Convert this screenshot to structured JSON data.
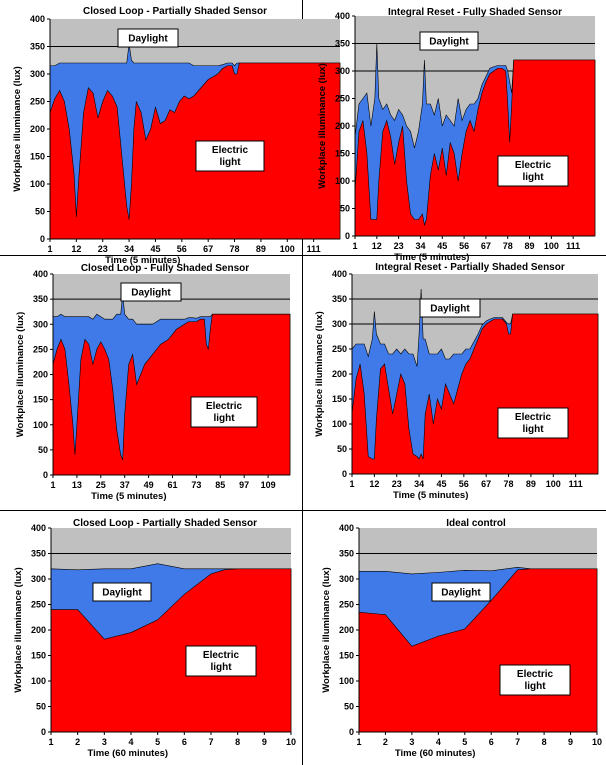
{
  "colors": {
    "daylight": "#3f7ae8",
    "electric": "#ff0000",
    "background": "#c0c0c0",
    "label_box": "#ffffff",
    "frame": "#000000"
  },
  "chart_data": [
    {
      "type": "area",
      "title": "Closed Loop - Partially Shaded Sensor",
      "ylabel": "Workplace illuminance (lux)",
      "xlabel": "Time (5 minutes)",
      "ylim": [
        0,
        400
      ],
      "yticks": [
        "0",
        "50",
        "100",
        "150",
        "200",
        "250",
        "300",
        "350",
        "400"
      ],
      "xticks": [
        "1",
        "12",
        "23",
        "34",
        "45",
        "56",
        "67",
        "78",
        "89",
        "100",
        "111"
      ],
      "xlim": [
        1,
        122
      ],
      "gridlines": [
        300,
        350
      ],
      "labels": {
        "daylight": "Daylight",
        "electric": [
          "Electric",
          "light"
        ]
      },
      "x": [
        1,
        3,
        5,
        7,
        9,
        11,
        12,
        13,
        15,
        17,
        19,
        21,
        23,
        25,
        27,
        29,
        31,
        33,
        34,
        35,
        36,
        37,
        39,
        41,
        43,
        45,
        47,
        49,
        51,
        53,
        55,
        57,
        59,
        61,
        63,
        65,
        67,
        69,
        71,
        73,
        75,
        77,
        78,
        79,
        80,
        81,
        122
      ],
      "series": [
        {
          "name": "Electric light",
          "values": [
            230,
            255,
            270,
            250,
            200,
            120,
            40,
            110,
            230,
            275,
            265,
            220,
            250,
            270,
            260,
            240,
            150,
            60,
            35,
            100,
            200,
            250,
            230,
            180,
            200,
            240,
            210,
            215,
            235,
            230,
            250,
            260,
            255,
            260,
            270,
            280,
            290,
            295,
            300,
            310,
            315,
            315,
            300,
            300,
            320,
            320,
            320
          ]
        },
        {
          "name": "Daylight",
          "values": [
            85,
            60,
            50,
            70,
            120,
            200,
            280,
            210,
            90,
            45,
            55,
            100,
            70,
            50,
            60,
            80,
            170,
            260,
            320,
            225,
            120,
            70,
            90,
            140,
            120,
            80,
            110,
            105,
            85,
            90,
            70,
            60,
            65,
            55,
            45,
            35,
            25,
            20,
            15,
            7,
            5,
            5,
            15,
            20,
            0,
            0,
            0
          ]
        }
      ]
    },
    {
      "type": "area",
      "title": "Integral Reset - Fully Shaded Sensor",
      "ylabel": "Workplace illuminance (lux)",
      "xlabel": "Time (5 minutes)",
      "ylim": [
        0,
        400
      ],
      "yticks": [
        "0",
        "50",
        "100",
        "150",
        "200",
        "250",
        "300",
        "350",
        "400"
      ],
      "xticks": [
        "1",
        "12",
        "23",
        "34",
        "45",
        "56",
        "67",
        "78",
        "89",
        "100",
        "111"
      ],
      "xlim": [
        1,
        122
      ],
      "gridlines": [
        300,
        350
      ],
      "labels": {
        "daylight": "Daylight",
        "electric": [
          "Electric",
          "light"
        ]
      },
      "x": [
        1,
        3,
        5,
        7,
        9,
        11,
        12,
        13,
        15,
        17,
        19,
        21,
        23,
        25,
        27,
        29,
        31,
        33,
        35,
        36,
        37,
        39,
        41,
        43,
        45,
        47,
        49,
        51,
        53,
        55,
        57,
        59,
        61,
        63,
        65,
        67,
        69,
        71,
        73,
        75,
        77,
        78,
        79,
        80,
        81,
        122
      ],
      "series": [
        {
          "name": "Electric light",
          "values": [
            80,
            190,
            210,
            150,
            30,
            30,
            30,
            100,
            190,
            210,
            180,
            130,
            170,
            200,
            100,
            40,
            30,
            30,
            40,
            20,
            30,
            110,
            150,
            120,
            160,
            110,
            170,
            150,
            100,
            150,
            190,
            210,
            190,
            230,
            260,
            280,
            295,
            300,
            305,
            305,
            300,
            240,
            170,
            240,
            320,
            320
          ]
        },
        {
          "name": "Daylight",
          "values": [
            100,
            50,
            40,
            110,
            170,
            220,
            320,
            150,
            40,
            30,
            40,
            80,
            60,
            20,
            100,
            150,
            130,
            160,
            200,
            300,
            210,
            130,
            70,
            130,
            40,
            110,
            40,
            50,
            150,
            60,
            40,
            30,
            50,
            20,
            15,
            10,
            10,
            8,
            5,
            5,
            10,
            60,
            110,
            20,
            0,
            0
          ]
        }
      ]
    },
    {
      "type": "area",
      "title": "Closed Loop - Fully Shaded Sensor",
      "ylabel": "Workplace illuminance (lux)",
      "xlabel": "Time (5 minutes)",
      "ylim": [
        0,
        400
      ],
      "yticks": [
        "0",
        "50",
        "100",
        "150",
        "200",
        "250",
        "300",
        "350",
        "400"
      ],
      "xticks": [
        "1",
        "13",
        "25",
        "37",
        "49",
        "61",
        "73",
        "85",
        "97",
        "109"
      ],
      "xlim": [
        1,
        120
      ],
      "gridlines": [
        300,
        350
      ],
      "labels": {
        "daylight": "Daylight",
        "electric": [
          "Electric",
          "light"
        ]
      },
      "x": [
        1,
        3,
        5,
        7,
        9,
        11,
        12,
        13,
        15,
        17,
        19,
        21,
        23,
        25,
        27,
        29,
        31,
        33,
        35,
        36,
        37,
        39,
        41,
        43,
        45,
        47,
        49,
        51,
        53,
        55,
        57,
        59,
        61,
        63,
        65,
        67,
        69,
        71,
        73,
        75,
        77,
        78,
        79,
        80,
        81,
        120
      ],
      "series": [
        {
          "name": "Electric light",
          "values": [
            220,
            250,
            270,
            250,
            180,
            100,
            40,
            100,
            230,
            270,
            260,
            220,
            250,
            265,
            250,
            230,
            170,
            90,
            40,
            30,
            120,
            220,
            240,
            180,
            200,
            220,
            230,
            240,
            250,
            260,
            265,
            270,
            280,
            290,
            295,
            300,
            305,
            305,
            305,
            310,
            310,
            260,
            250,
            290,
            320,
            320
          ]
        },
        {
          "name": "Daylight",
          "values": [
            95,
            65,
            50,
            65,
            135,
            215,
            275,
            215,
            85,
            45,
            55,
            90,
            70,
            50,
            60,
            80,
            140,
            230,
            280,
            330,
            200,
            90,
            70,
            120,
            100,
            80,
            70,
            60,
            55,
            50,
            45,
            40,
            30,
            20,
            15,
            10,
            8,
            8,
            7,
            5,
            5,
            55,
            65,
            25,
            0,
            0
          ]
        }
      ]
    },
    {
      "type": "area",
      "title": "Integral Reset - Partially Shaded Sensor",
      "ylabel": "Workplace illuminance (lux)",
      "xlabel": "Time (5 minutes)",
      "ylim": [
        0,
        400
      ],
      "yticks": [
        "0",
        "50",
        "100",
        "150",
        "200",
        "250",
        "300",
        "350",
        "400"
      ],
      "xticks": [
        "1",
        "12",
        "23",
        "34",
        "45",
        "56",
        "67",
        "78",
        "89",
        "100",
        "111"
      ],
      "xlim": [
        1,
        122
      ],
      "gridlines": [
        300,
        350
      ],
      "labels": {
        "daylight": "Daylight",
        "electric": [
          "Electric",
          "light"
        ]
      },
      "x": [
        1,
        3,
        5,
        7,
        9,
        11,
        12,
        13,
        15,
        17,
        19,
        21,
        23,
        25,
        27,
        29,
        31,
        33,
        34,
        35,
        36,
        37,
        39,
        41,
        43,
        45,
        47,
        49,
        51,
        53,
        55,
        57,
        59,
        61,
        63,
        65,
        67,
        69,
        71,
        73,
        75,
        77,
        78,
        79,
        80,
        81,
        122
      ],
      "series": [
        {
          "name": "Electric light",
          "values": [
            120,
            190,
            220,
            160,
            35,
            30,
            30,
            110,
            210,
            220,
            170,
            120,
            160,
            200,
            180,
            90,
            40,
            35,
            30,
            40,
            30,
            120,
            160,
            100,
            150,
            130,
            180,
            160,
            140,
            170,
            200,
            220,
            230,
            250,
            270,
            290,
            300,
            305,
            310,
            310,
            310,
            300,
            280,
            280,
            320,
            320,
            320
          ]
        },
        {
          "name": "Daylight",
          "values": [
            130,
            70,
            40,
            100,
            200,
            240,
            295,
            170,
            50,
            40,
            70,
            120,
            90,
            40,
            70,
            150,
            200,
            180,
            250,
            330,
            240,
            150,
            80,
            140,
            90,
            120,
            50,
            70,
            100,
            70,
            40,
            30,
            20,
            15,
            10,
            8,
            6,
            5,
            3,
            3,
            3,
            3,
            20,
            20,
            0,
            0,
            0
          ]
        }
      ]
    },
    {
      "type": "area",
      "title": "Closed Loop - Partially Shaded Sensor",
      "ylabel": "Workplace illuminance (lux)",
      "xlabel": "Time (60 minutes)",
      "ylim": [
        0,
        400
      ],
      "yticks": [
        "0",
        "50",
        "100",
        "150",
        "200",
        "250",
        "300",
        "350",
        "400"
      ],
      "xticks": [
        "1",
        "2",
        "3",
        "4",
        "5",
        "6",
        "7",
        "8",
        "9",
        "10"
      ],
      "xlim": [
        1,
        10
      ],
      "gridlines": [
        300,
        350
      ],
      "labels": {
        "daylight": "Daylight",
        "electric": [
          "Electric",
          "light"
        ]
      },
      "x": [
        1,
        2,
        3,
        4,
        5,
        6,
        7,
        7.5,
        8,
        9,
        10
      ],
      "series": [
        {
          "name": "Electric light",
          "values": [
            240,
            240,
            182,
            195,
            220,
            270,
            310,
            318,
            320,
            320,
            320
          ]
        },
        {
          "name": "Daylight",
          "values": [
            80,
            78,
            138,
            125,
            110,
            50,
            10,
            2,
            0,
            0,
            0
          ]
        }
      ]
    },
    {
      "type": "area",
      "title": "Ideal control",
      "ylabel": "Workplace illuminance (lux)",
      "xlabel": "Time (60 minutes)",
      "ylim": [
        0,
        400
      ],
      "yticks": [
        "0",
        "50",
        "100",
        "150",
        "200",
        "250",
        "300",
        "350",
        "400"
      ],
      "xticks": [
        "1",
        "2",
        "3",
        "4",
        "5",
        "6",
        "7",
        "8",
        "9",
        "10"
      ],
      "xlim": [
        1,
        10
      ],
      "gridlines": [
        300,
        350
      ],
      "labels": {
        "daylight": "Daylight",
        "electric": [
          "Electric",
          "light"
        ]
      },
      "x": [
        1,
        2,
        3,
        4,
        5,
        6,
        7,
        7.5,
        8,
        9,
        10
      ],
      "series": [
        {
          "name": "Electric light",
          "values": [
            235,
            230,
            168,
            188,
            202,
            258,
            318,
            320,
            320,
            320,
            320
          ]
        },
        {
          "name": "Daylight",
          "values": [
            80,
            85,
            142,
            125,
            115,
            58,
            5,
            0,
            0,
            0,
            0
          ]
        }
      ]
    }
  ]
}
